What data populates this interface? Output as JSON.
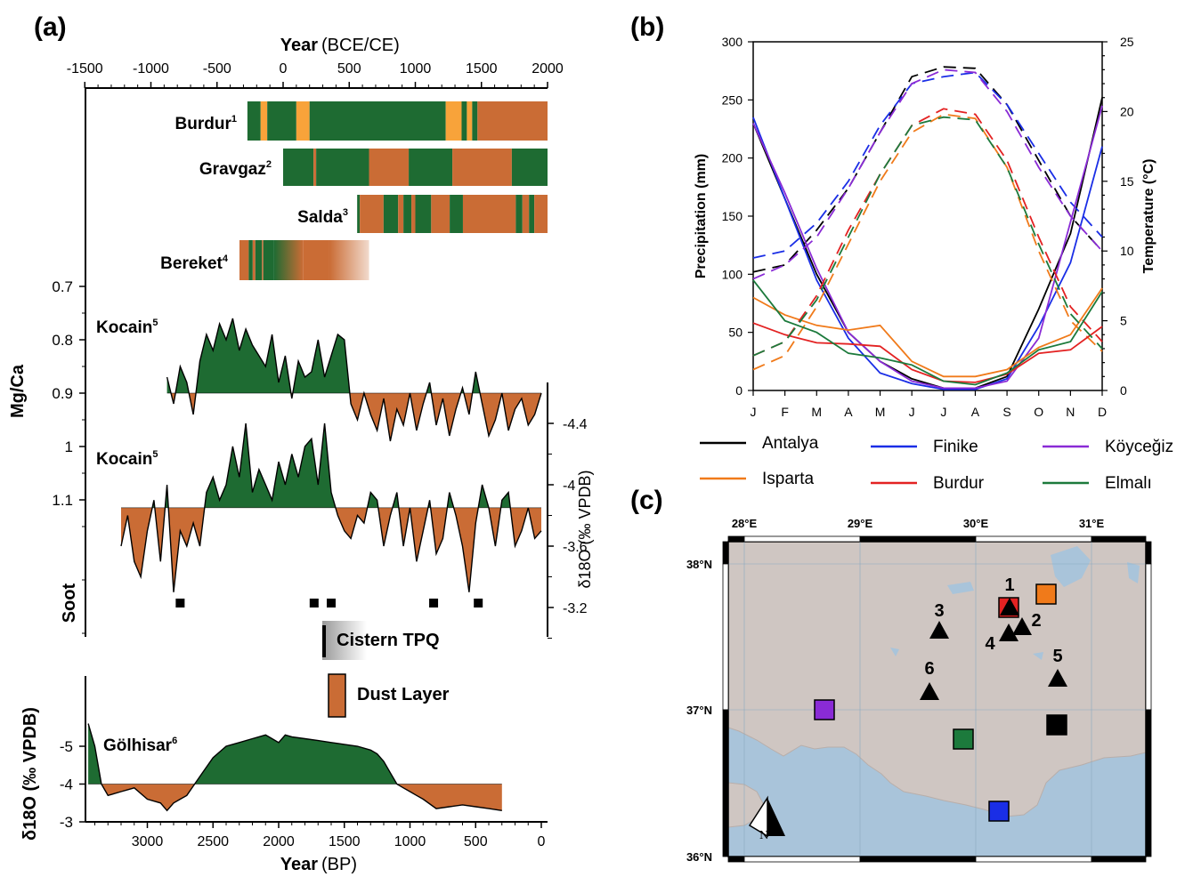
{
  "panel_labels": {
    "a": "(a)",
    "b": "(b)",
    "c": "(c)"
  },
  "colors": {
    "green": "#1e6b32",
    "orange": "#ca6c35",
    "yellow": "#f8a33a",
    "sea": "#a9c4da",
    "land": "#cfc6c2"
  },
  "panel_a": {
    "top_axis": {
      "title": "Year",
      "units": "(BCE/CE)",
      "ticks": [
        "-1500",
        "-1000",
        "-500",
        "0",
        "500",
        "1000",
        "1500",
        "2000"
      ]
    },
    "bottom_axis": {
      "title": "Year",
      "units": "(BP)",
      "ticks": [
        "3000",
        "2500",
        "2000",
        "1500",
        "1000",
        "500",
        "0"
      ]
    },
    "left_axis_mgca": {
      "label": "Mg/Ca",
      "ticks": [
        "0.7",
        "0.8",
        "0.9",
        "1",
        "1.1"
      ]
    },
    "right_axis_d18o": {
      "label": "δ18O (‰ VPDB)",
      "ticks": [
        "-4.4",
        "-4",
        "-3.6",
        "-3.2"
      ]
    },
    "left_axis_golhisar": {
      "label": "δ18O (‰ VPDB)",
      "ticks": [
        "-5",
        "-4",
        "-3"
      ]
    },
    "soot_label": "Soot",
    "legend": {
      "cistern": "Cistern TPQ",
      "dust": "Dust Layer"
    },
    "records": [
      {
        "name": "Burdur",
        "sup": "1"
      },
      {
        "name": "Gravgaz",
        "sup": "2"
      },
      {
        "name": "Salda",
        "sup": "3"
      },
      {
        "name": "Bereket",
        "sup": "4"
      },
      {
        "name": "Kocain",
        "sup": "5"
      },
      {
        "name": "Kocain",
        "sup": "5"
      },
      {
        "name": "Gölhisar",
        "sup": "6"
      }
    ]
  },
  "chart_data": [
    {
      "type": "bar",
      "title": "",
      "xlabel": "Year (BCE/CE)",
      "xlim": [
        -1500,
        2000
      ],
      "series": [
        {
          "name": "Burdur",
          "segments": [
            [
              -270,
              -170,
              "green"
            ],
            [
              -170,
              -120,
              "yellow"
            ],
            [
              -120,
              100,
              "green"
            ],
            [
              100,
              200,
              "yellow"
            ],
            [
              200,
              1230,
              "green"
            ],
            [
              1230,
              1350,
              "yellow"
            ],
            [
              1350,
              1390,
              "green"
            ],
            [
              1390,
              1430,
              "yellow"
            ],
            [
              1430,
              1470,
              "green"
            ],
            [
              1470,
              2000,
              "orange"
            ]
          ]
        },
        {
          "name": "Gravgaz",
          "segments": [
            [
              0,
              230,
              "green"
            ],
            [
              230,
              250,
              "orange"
            ],
            [
              250,
              650,
              "green"
            ],
            [
              650,
              950,
              "orange"
            ],
            [
              950,
              1280,
              "green"
            ],
            [
              1280,
              1730,
              "orange"
            ],
            [
              1730,
              2000,
              "green"
            ]
          ]
        },
        {
          "name": "Salda",
          "segments": [
            [
              560,
              580,
              "green"
            ],
            [
              580,
              760,
              "orange"
            ],
            [
              760,
              870,
              "green"
            ],
            [
              870,
              910,
              "orange"
            ],
            [
              910,
              970,
              "green"
            ],
            [
              970,
              1000,
              "orange"
            ],
            [
              1000,
              1120,
              "green"
            ],
            [
              1120,
              1260,
              "orange"
            ],
            [
              1260,
              1360,
              "green"
            ],
            [
              1360,
              1760,
              "orange"
            ],
            [
              1760,
              1810,
              "green"
            ],
            [
              1810,
              1860,
              "orange"
            ],
            [
              1860,
              1900,
              "green"
            ],
            [
              1900,
              2000,
              "orange"
            ]
          ]
        },
        {
          "name": "Bereket",
          "segments": [
            [
              -330,
              -260,
              "orange"
            ],
            [
              -260,
              -230,
              "green"
            ],
            [
              -230,
              -210,
              "orange"
            ],
            [
              -210,
              -160,
              "green"
            ],
            [
              -160,
              -150,
              "orange"
            ],
            [
              -150,
              -70,
              "green"
            ],
            [
              -70,
              150,
              "green-fade"
            ],
            [
              150,
              350,
              "orange"
            ],
            [
              350,
              650,
              "orange-fade"
            ]
          ]
        }
      ]
    },
    {
      "type": "area",
      "title": "",
      "series": [
        {
          "name": "Kocain",
          "ylabel": "Mg/Ca",
          "ylim": [
            0.7,
            1.1
          ],
          "baseline": 0.9,
          "x": [
            2850,
            2800,
            2750,
            2700,
            2650,
            2600,
            2550,
            2500,
            2450,
            2400,
            2350,
            2300,
            2250,
            2200,
            2150,
            2100,
            2050,
            2000,
            1950,
            1900,
            1850,
            1800,
            1750,
            1700,
            1650,
            1600,
            1550,
            1500,
            1450,
            1400,
            1350,
            1300,
            1250,
            1200,
            1150,
            1100,
            1050,
            1000,
            950,
            900,
            850,
            800,
            750,
            700,
            650,
            600,
            550,
            500,
            450,
            400,
            350,
            300,
            250,
            200,
            150,
            100,
            50,
            0
          ],
          "y": [
            0.87,
            0.92,
            0.85,
            0.88,
            0.94,
            0.84,
            0.79,
            0.82,
            0.77,
            0.8,
            0.76,
            0.82,
            0.78,
            0.81,
            0.83,
            0.85,
            0.79,
            0.88,
            0.83,
            0.91,
            0.84,
            0.87,
            0.86,
            0.8,
            0.87,
            0.83,
            0.79,
            0.8,
            0.92,
            0.95,
            0.9,
            0.94,
            0.97,
            0.91,
            0.99,
            0.93,
            0.96,
            0.9,
            0.97,
            0.92,
            0.88,
            0.96,
            0.91,
            0.98,
            0.93,
            0.89,
            0.94,
            0.86,
            0.92,
            0.98,
            0.95,
            0.9,
            0.97,
            0.93,
            0.91,
            0.96,
            0.94,
            0.9
          ]
        },
        {
          "name": "Kocain",
          "ylabel": "δ18O (‰ VPDB)",
          "ylim": [
            -4.4,
            -3.2
          ],
          "baseline": -3.85,
          "x": [
            3200,
            3150,
            3100,
            3050,
            3000,
            2950,
            2900,
            2850,
            2800,
            2750,
            2700,
            2650,
            2600,
            2550,
            2500,
            2450,
            2400,
            2350,
            2300,
            2250,
            2200,
            2150,
            2100,
            2050,
            2000,
            1950,
            1900,
            1850,
            1800,
            1750,
            1700,
            1650,
            1600,
            1550,
            1500,
            1450,
            1400,
            1350,
            1300,
            1250,
            1200,
            1150,
            1100,
            1050,
            1000,
            950,
            900,
            850,
            800,
            750,
            700,
            650,
            600,
            550,
            500,
            450,
            400,
            350,
            300,
            250,
            200,
            150,
            100,
            50,
            0
          ],
          "y": [
            -3.6,
            -3.8,
            -3.5,
            -3.4,
            -3.7,
            -3.9,
            -3.5,
            -4.0,
            -3.3,
            -3.7,
            -3.6,
            -3.75,
            -3.6,
            -3.95,
            -4.05,
            -3.9,
            -4.0,
            -4.25,
            -4.05,
            -4.4,
            -3.95,
            -4.1,
            -4.0,
            -3.9,
            -4.15,
            -4.0,
            -4.2,
            -4.05,
            -4.25,
            -4.3,
            -4.0,
            -4.4,
            -3.95,
            -3.8,
            -3.7,
            -3.65,
            -3.8,
            -3.75,
            -3.95,
            -3.9,
            -3.6,
            -3.8,
            -3.95,
            -3.6,
            -3.85,
            -3.5,
            -3.7,
            -3.9,
            -3.55,
            -3.65,
            -3.95,
            -3.8,
            -3.6,
            -3.3,
            -3.75,
            -4.0,
            -3.85,
            -3.6,
            -3.9,
            -3.95,
            -3.6,
            -3.7,
            -3.85,
            -3.65,
            -3.7
          ]
        }
      ]
    },
    {
      "type": "scatter",
      "title": "",
      "series": [
        {
          "name": "Soot",
          "x": [
            2750,
            1730,
            1600,
            820,
            480
          ]
        }
      ]
    },
    {
      "type": "area",
      "title": "",
      "series": [
        {
          "name": "Gölhisar",
          "ylabel": "δ18O (‰ VPDB)",
          "ylim": [
            -3,
            -5.5
          ],
          "baseline": -4.0,
          "x": [
            3450,
            3400,
            3350,
            3300,
            3200,
            3100,
            3000,
            2900,
            2850,
            2800,
            2750,
            2700,
            2600,
            2500,
            2400,
            2300,
            2200,
            2100,
            2050,
            2000,
            1950,
            1900,
            1800,
            1700,
            1600,
            1500,
            1400,
            1300,
            1250,
            1200,
            1150,
            1100,
            1050,
            1000,
            950,
            900,
            800,
            700,
            600,
            500,
            400,
            300
          ],
          "y": [
            -5.6,
            -5.0,
            -4.0,
            -3.7,
            -3.8,
            -3.9,
            -3.6,
            -3.5,
            -3.3,
            -3.5,
            -3.6,
            -3.7,
            -4.2,
            -4.7,
            -5.0,
            -5.1,
            -5.2,
            -5.3,
            -5.2,
            -5.1,
            -5.3,
            -5.25,
            -5.2,
            -5.15,
            -5.1,
            -5.05,
            -5.0,
            -4.9,
            -4.8,
            -4.6,
            -4.3,
            -4.0,
            -3.9,
            -3.8,
            -3.7,
            -3.6,
            -3.35,
            -3.4,
            -3.45,
            -3.4,
            -3.35,
            -3.3
          ]
        }
      ]
    },
    {
      "type": "line",
      "title": "",
      "xlabel": "",
      "ylabel": "Precipitation (mm)",
      "y2label": "Temperature (°C)",
      "categories": [
        "J",
        "F",
        "M",
        "A",
        "M",
        "J",
        "J",
        "A",
        "S",
        "O",
        "N",
        "D"
      ],
      "ylim": [
        0,
        300
      ],
      "y2lim": [
        0,
        25
      ],
      "series": [
        {
          "name": "Antalya",
          "color": "#000000",
          "precip": [
            230,
            165,
            100,
            50,
            25,
            10,
            2,
            2,
            12,
            70,
            135,
            252
          ],
          "temp": [
            8.5,
            9.0,
            11.5,
            14.5,
            18.5,
            22.5,
            23.2,
            23.1,
            20.5,
            16.5,
            12.5,
            10.0
          ]
        },
        {
          "name": "Finike",
          "color": "#1a2ee6",
          "precip": [
            235,
            165,
            95,
            45,
            15,
            6,
            1,
            1,
            10,
            55,
            110,
            210
          ],
          "temp": [
            9.5,
            10.0,
            12.0,
            15.0,
            19.0,
            22.0,
            22.5,
            22.8,
            20.5,
            17.0,
            13.5,
            11.0
          ]
        },
        {
          "name": "Köyceğiz",
          "color": "#8a2bd6",
          "precip": [
            230,
            170,
            105,
            50,
            25,
            8,
            2,
            2,
            8,
            45,
            145,
            245
          ],
          "temp": [
            8.0,
            9.0,
            11.0,
            14.5,
            18.5,
            22.0,
            23.0,
            22.8,
            20.0,
            16.0,
            12.5,
            10.0
          ]
        },
        {
          "name": "Isparta",
          "color": "#f07a1a",
          "precip": [
            80,
            65,
            56,
            52,
            56,
            25,
            12,
            12,
            18,
            37,
            48,
            88
          ],
          "temp": [
            1.5,
            2.5,
            6.0,
            10.5,
            15.0,
            18.5,
            19.8,
            19.5,
            16.0,
            10.0,
            5.0,
            2.8
          ]
        },
        {
          "name": "Burdur",
          "color": "#e32222",
          "precip": [
            58,
            48,
            41,
            40,
            38,
            18,
            8,
            7,
            14,
            32,
            35,
            55
          ],
          "temp": [
            2.5,
            3.5,
            6.8,
            11.5,
            15.5,
            19.0,
            20.2,
            19.8,
            16.5,
            11.0,
            6.0,
            3.5
          ]
        },
        {
          "name": "Elmalı",
          "color": "#1c7a3c",
          "precip": [
            95,
            60,
            50,
            32,
            28,
            22,
            8,
            5,
            15,
            35,
            42,
            85
          ],
          "temp": [
            2.5,
            3.5,
            6.5,
            11.0,
            15.5,
            19.0,
            19.6,
            19.4,
            16.0,
            10.5,
            5.5,
            3.0
          ]
        }
      ]
    }
  ],
  "panel_b": {
    "legend": [
      "Antalya",
      "Finike",
      "Köyceğiz",
      "Isparta",
      "Burdur",
      "Elmalı"
    ],
    "ylabel": "Precipitation (mm)",
    "y2label": "Temperature (°C)",
    "yticks": [
      "0",
      "50",
      "100",
      "150",
      "200",
      "250",
      "300"
    ],
    "y2ticks": [
      "0",
      "5",
      "10",
      "15",
      "20",
      "25"
    ]
  },
  "panel_c": {
    "lon_labels": [
      "28°E",
      "29°E",
      "30°E",
      "31°E"
    ],
    "lat_labels": [
      "38°N",
      "37°N",
      "36°N"
    ],
    "site_numbers": [
      "1",
      "2",
      "3",
      "4",
      "5",
      "6"
    ],
    "north_label": "N",
    "station_colors": [
      "#f07a1a",
      "#e32222",
      "#8a2bd6",
      "#1c7a3c",
      "#000000",
      "#1a2ee6"
    ]
  }
}
